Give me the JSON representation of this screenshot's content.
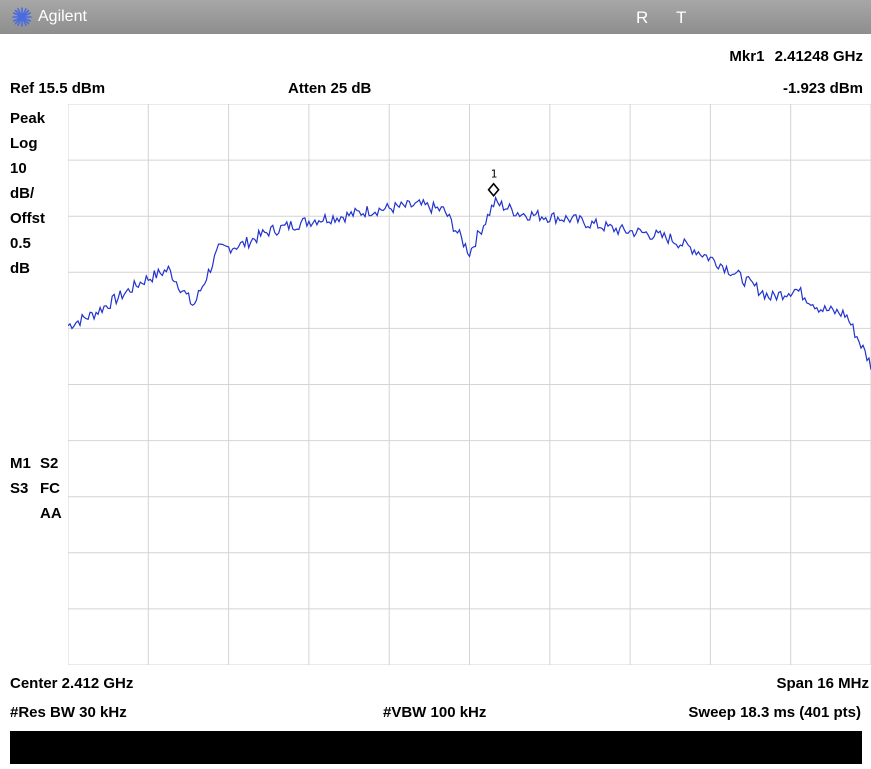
{
  "titlebar": {
    "brand": "Agilent",
    "status_r": "R",
    "status_t": "T"
  },
  "marker": {
    "label": "Mkr1",
    "frequency": "2.41248 GHz",
    "amplitude": "-1.923 dBm",
    "index_label": "1"
  },
  "header": {
    "ref_level": "Ref 15.5 dBm",
    "attenuation": "Atten 25 dB"
  },
  "scale_info": [
    "Peak",
    "Log",
    "10",
    "dB/",
    "Offst",
    "0.5",
    "dB"
  ],
  "flags": [
    {
      "a": "M1",
      "b": "S2"
    },
    {
      "a": "S3",
      "b": "FC"
    },
    {
      "a": "",
      "b": "AA"
    }
  ],
  "footer": {
    "center": "Center 2.412 GHz",
    "span": "Span 16 MHz",
    "rbw": "#Res BW 30 kHz",
    "vbw": "#VBW 100 kHz",
    "sweep": "Sweep 18.3 ms (401 pts)"
  },
  "colors": {
    "trace": "#2233cc",
    "grid": "#d4d4d4",
    "titlebar": "#999999",
    "brand_logo": "#4b6be0"
  },
  "chart_data": {
    "type": "line",
    "x_range": [
      2.404,
      2.42
    ],
    "ylim": [
      -84.5,
      15.5
    ],
    "grid": true,
    "marker": {
      "x": 2.41248,
      "y": -1.923
    },
    "series": [
      {
        "x": [
          2.404,
          2.4045,
          2.405,
          2.4055,
          2.406,
          2.4065,
          2.407,
          2.4075,
          2.408,
          2.4085,
          2.409,
          2.4095,
          2.41,
          2.4105,
          2.411,
          2.4115,
          2.412,
          2.4125,
          2.413,
          2.4135,
          2.414,
          2.4145,
          2.415,
          2.4155,
          2.416,
          2.4165,
          2.417,
          2.4175,
          2.418,
          2.4185,
          2.419,
          2.4195,
          2.42
        ],
        "values": [
          -24.0,
          -22.0,
          -19.0,
          -16.0,
          -14.0,
          -20.5,
          -10.5,
          -9.5,
          -7.2,
          -6.0,
          -5.0,
          -4.5,
          -3.5,
          -3.0,
          -2.5,
          -3.5,
          -11.0,
          -2.0,
          -4.0,
          -4.5,
          -5.0,
          -6.0,
          -7.0,
          -7.5,
          -8.5,
          -10.5,
          -13.0,
          -16.0,
          -19.0,
          -17.5,
          -21.0,
          -22.0,
          -31.0
        ]
      }
    ]
  }
}
